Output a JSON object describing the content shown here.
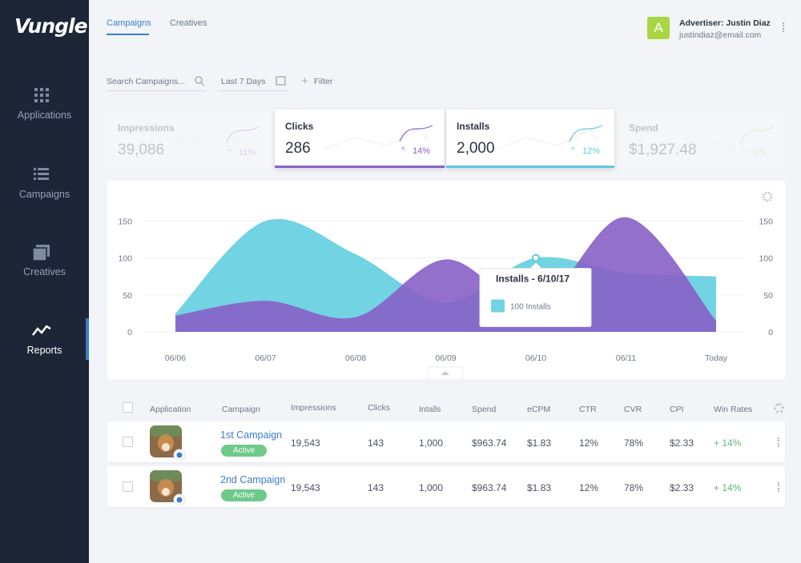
{
  "sidebar": {
    "logo": "Vungle",
    "items": [
      "Applications",
      "Campaigns",
      "Creatives",
      "Reports"
    ]
  },
  "tabs": [
    "Campaigns",
    "Creatives"
  ],
  "user": {
    "avatar": "A",
    "name": "Advertiser: Justin Diaz",
    "email": "justindiaz@email.com"
  },
  "filters": {
    "search": "Search Campaigns...",
    "date": "Last 7 Days",
    "filter": "Filter"
  },
  "kpis": [
    {
      "label": "Impressions",
      "value": "39,086",
      "change": "11%"
    },
    {
      "label": "Clicks",
      "value": "286",
      "change": "14%"
    },
    {
      "label": "Installs",
      "value": "2,000",
      "change": "12%"
    },
    {
      "label": "Spend",
      "value": "$1,927.48",
      "change": "5%"
    }
  ],
  "chart_data": {
    "type": "area",
    "categories": [
      "06/06",
      "06/07",
      "06/08",
      "06/09",
      "06/10",
      "06/11",
      "Today"
    ],
    "series": [
      {
        "color": "#72d3e3",
        "values": [
          25,
          150,
          105,
          40,
          100,
          80,
          75
        ]
      },
      {
        "color": "#8760c6",
        "values": [
          22,
          42,
          20,
          98,
          35,
          155,
          15
        ]
      }
    ],
    "ylim": [
      0,
      160
    ],
    "yticks": [
      0,
      50,
      100,
      150
    ],
    "y2lim": [
      0,
      160
    ],
    "y2ticks": [
      0,
      50,
      100,
      150
    ],
    "tooltip": {
      "title": "Installs - 6/10/17",
      "text": "100 Installs"
    }
  },
  "table": {
    "header": [
      "Application",
      "Campaign",
      "Impressions",
      "Clicks",
      "Intalls",
      "Spend",
      "eCPM",
      "CTR",
      "CVR",
      "CPI",
      "Win Rates"
    ],
    "rows": [
      [
        "1st Campaign",
        "Active",
        "19,543",
        "143",
        "1,000",
        "$963.74",
        "$1.83",
        "12%",
        "78%",
        "$2.33",
        "+ 14%"
      ],
      [
        "2nd Campaign",
        "Active",
        "19,543",
        "143",
        "1,000",
        "$963.74",
        "$1.83",
        "12%",
        "78%",
        "$2.33",
        "+ 14%"
      ]
    ]
  }
}
